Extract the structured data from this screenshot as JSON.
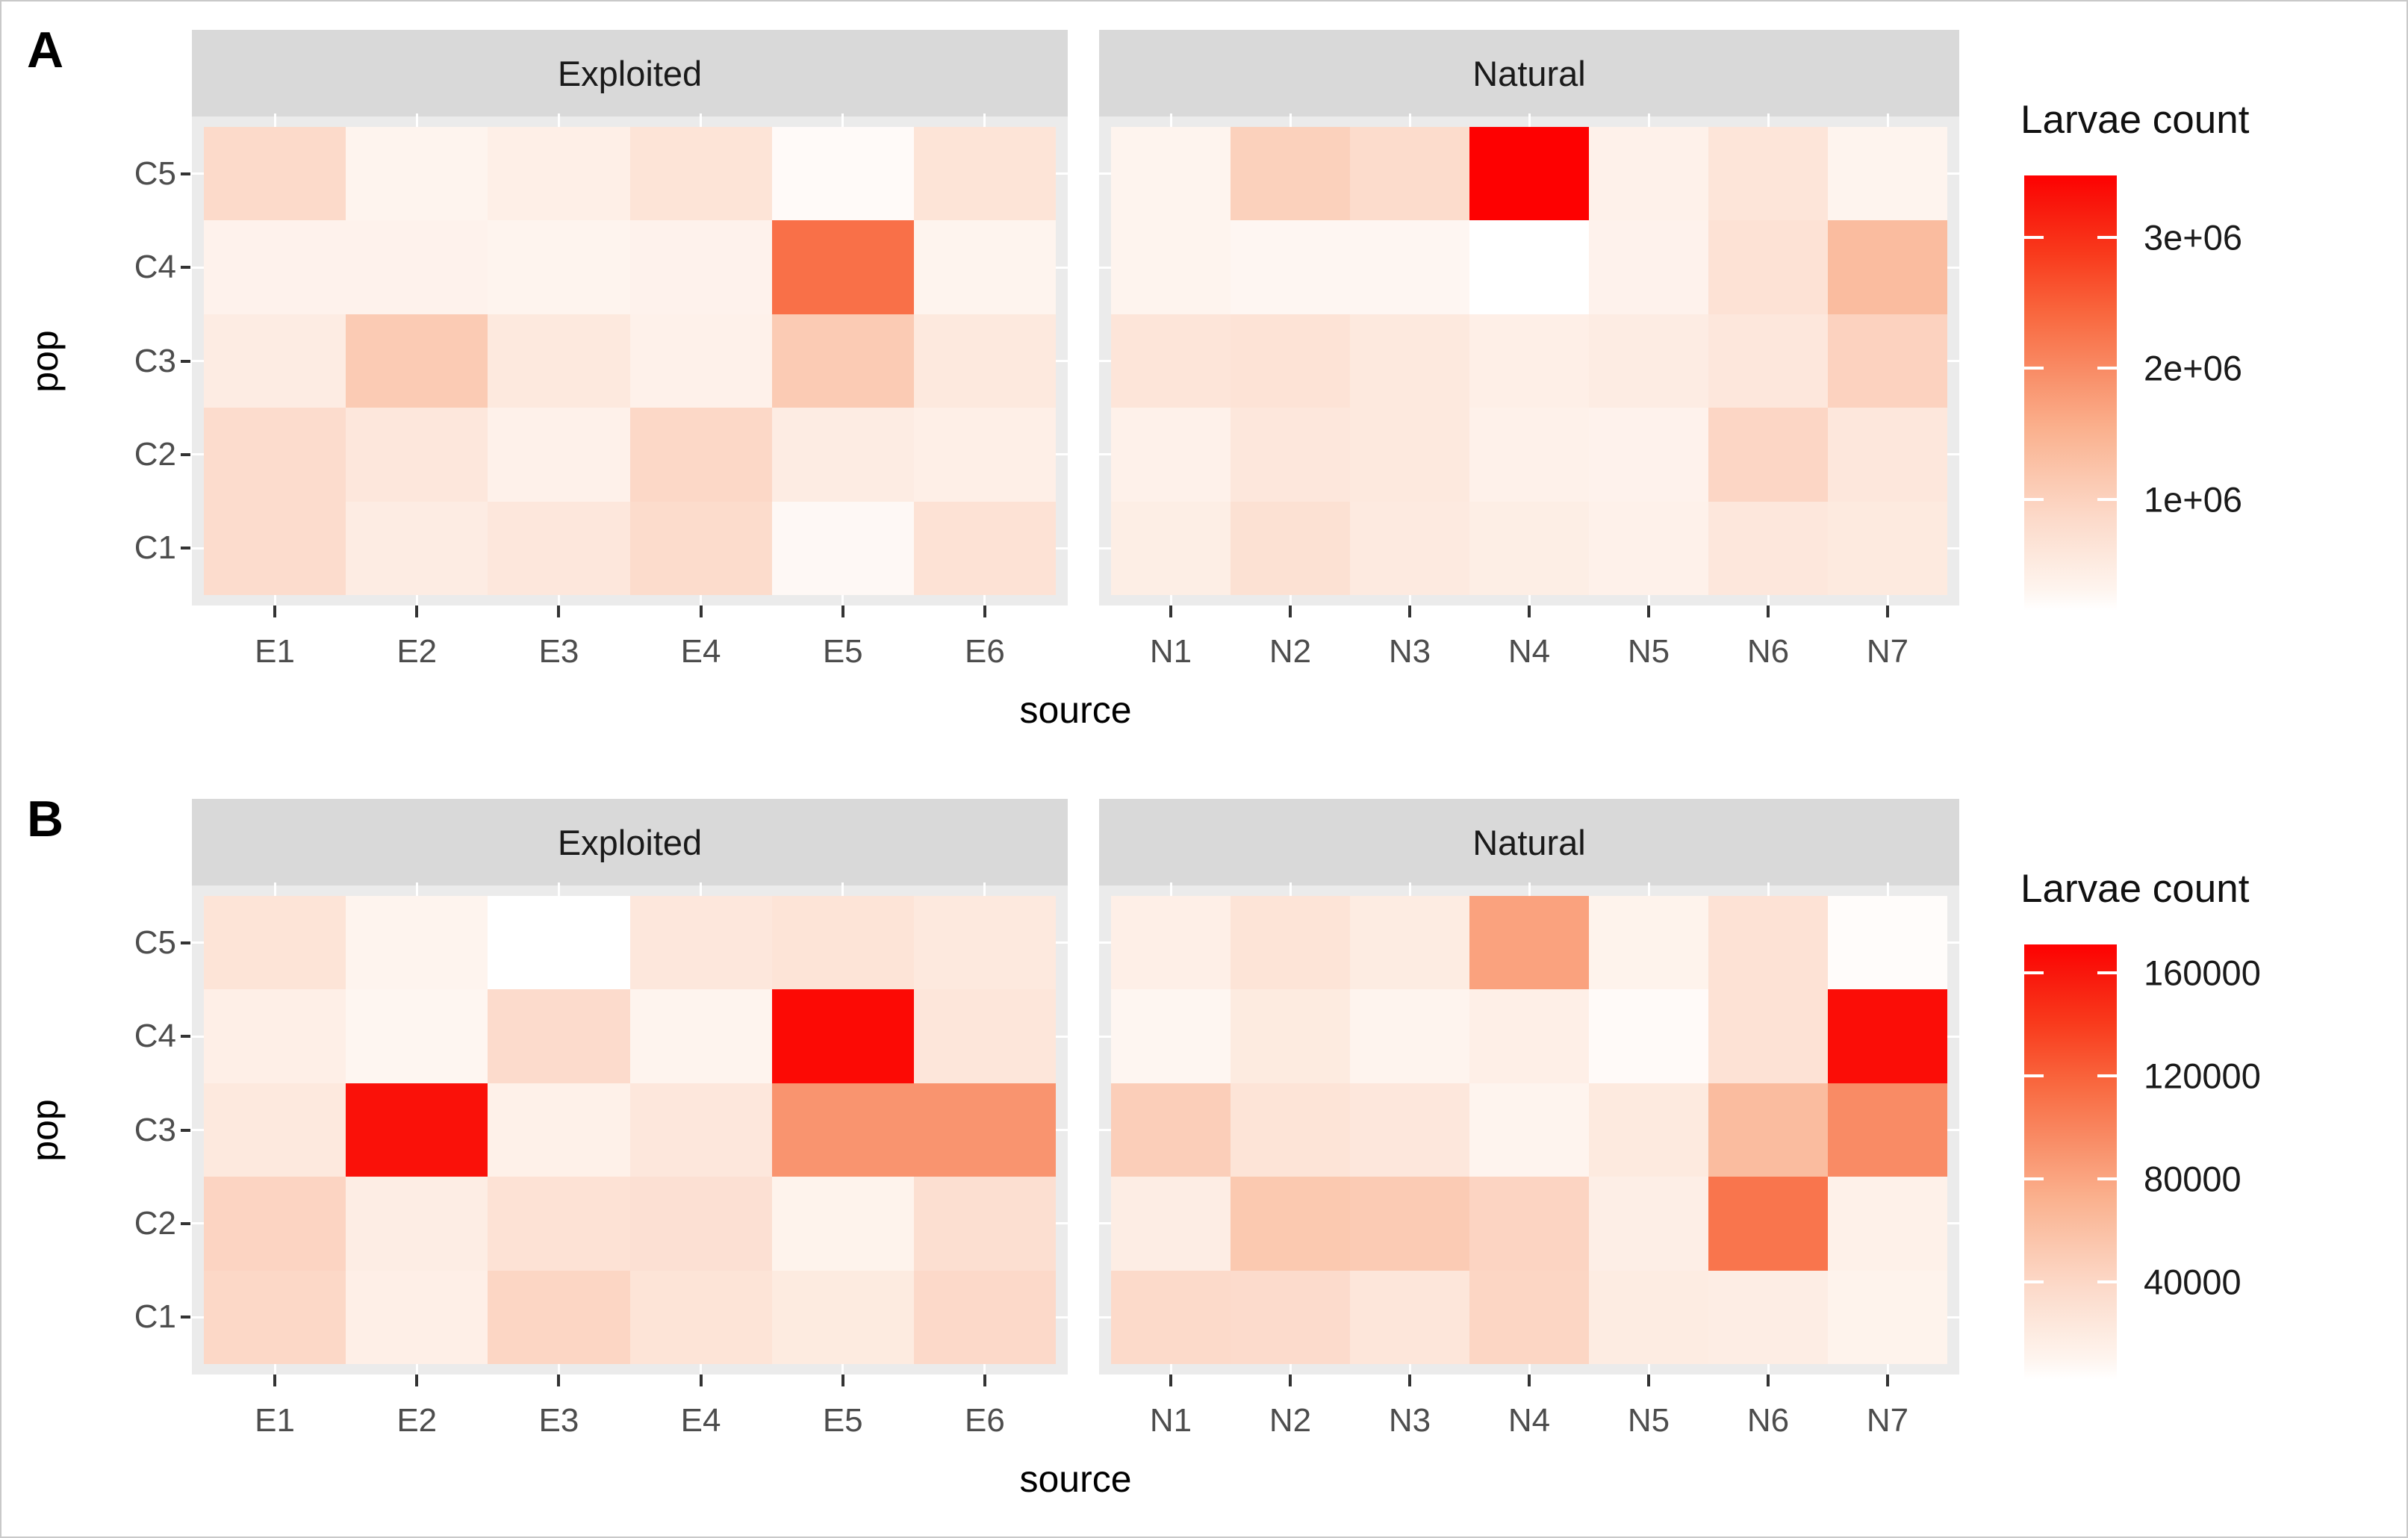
{
  "chart_data": [
    {
      "type": "heatmap",
      "panel_label": "A",
      "xlabel": "source",
      "ylabel": "pop",
      "rows": [
        "C5",
        "C4",
        "C3",
        "C2",
        "C1"
      ],
      "legend": {
        "title": "Larvae count",
        "domain": [
          150000,
          3470000
        ],
        "ticks": [
          {
            "label": "3e+06",
            "value": 3000000
          },
          {
            "label": "2e+06",
            "value": 2000000
          },
          {
            "label": "1e+06",
            "value": 1000000
          }
        ]
      },
      "facets": [
        {
          "name": "Exploited",
          "x": [
            "E1",
            "E2",
            "E3",
            "E4",
            "E5",
            "E6"
          ],
          "values": [
            [
              850000,
              320000,
              420000,
              650000,
              220000,
              650000
            ],
            [
              350000,
              350000,
              320000,
              350000,
              2310000,
              320000
            ],
            [
              480000,
              1110000,
              550000,
              380000,
              1110000,
              550000
            ],
            [
              800000,
              580000,
              380000,
              880000,
              480000,
              420000
            ],
            [
              800000,
              480000,
              580000,
              810000,
              250000,
              680000
            ]
          ]
        },
        {
          "name": "Natural",
          "x": [
            "N1",
            "N2",
            "N3",
            "N4",
            "N5",
            "N6",
            "N7"
          ],
          "values": [
            [
              320000,
              1010000,
              810000,
              3470000,
              380000,
              620000,
              320000
            ],
            [
              320000,
              280000,
              280000,
              150000,
              350000,
              680000,
              1350000
            ],
            [
              630000,
              670000,
              550000,
              420000,
              480000,
              580000,
              980000
            ],
            [
              380000,
              580000,
              550000,
              380000,
              350000,
              910000,
              580000
            ],
            [
              450000,
              710000,
              520000,
              450000,
              380000,
              580000,
              530000
            ]
          ]
        }
      ]
    },
    {
      "type": "heatmap",
      "panel_label": "B",
      "xlabel": "source",
      "ylabel": "pop",
      "rows": [
        "C5",
        "C4",
        "C3",
        "C2",
        "C1"
      ],
      "legend": {
        "title": "Larvae count",
        "domain": [
          2000,
          171000
        ],
        "ticks": [
          {
            "label": "160000",
            "value": 160000
          },
          {
            "label": "120000",
            "value": 120000
          },
          {
            "label": "80000",
            "value": 80000
          },
          {
            "label": "40000",
            "value": 40000
          }
        ]
      },
      "facets": [
        {
          "name": "Exploited",
          "x": [
            "E1",
            "E2",
            "E3",
            "E4",
            "E5",
            "E6"
          ],
          "values": [
            [
              27500,
              10500,
              2000,
              24000,
              27500,
              22500
            ],
            [
              15500,
              9000,
              36000,
              10500,
              166500,
              25500
            ],
            [
              22500,
              163000,
              14000,
              24000,
              90000,
              90000
            ],
            [
              42500,
              17500,
              29000,
              31000,
              12000,
              32500
            ],
            [
              39500,
              15500,
              41000,
              27500,
              20500,
              38000
            ]
          ]
        },
        {
          "name": "Natural",
          "x": [
            "N1",
            "N2",
            "N3",
            "N4",
            "N5",
            "N6",
            "N7"
          ],
          "values": [
            [
              15500,
              27500,
              19000,
              81500,
              12000,
              29000,
              4500
            ],
            [
              9000,
              20500,
              10500,
              15500,
              5500,
              29000,
              165000
            ],
            [
              48000,
              27500,
              24000,
              10500,
              21500,
              63000,
              95500
            ],
            [
              17500,
              53000,
              51000,
              42500,
              16500,
              109000,
              14000
            ],
            [
              37500,
              36000,
              25500,
              41000,
              19000,
              17500,
              12000
            ]
          ]
        }
      ]
    }
  ],
  "colors": {
    "strip_bg": "#d9d9d9",
    "panel_bg": "#ebebeb",
    "gridline": "#ffffff",
    "axis_tick": "#333333",
    "tick_label": "#4d4d4d",
    "title_text": "#000000",
    "ramp": [
      [
        0.0,
        "#ffffff"
      ],
      [
        0.05,
        "#fef4ee"
      ],
      [
        0.12,
        "#fde9de"
      ],
      [
        0.21,
        "#fcdaca"
      ],
      [
        0.3,
        "#fbc9b1"
      ],
      [
        0.42,
        "#fab08d"
      ],
      [
        0.54,
        "#f98f69"
      ],
      [
        0.68,
        "#f9683f"
      ],
      [
        0.82,
        "#f93a1c"
      ],
      [
        0.94,
        "#f9150b"
      ],
      [
        1.0,
        "#fe0101"
      ]
    ]
  }
}
